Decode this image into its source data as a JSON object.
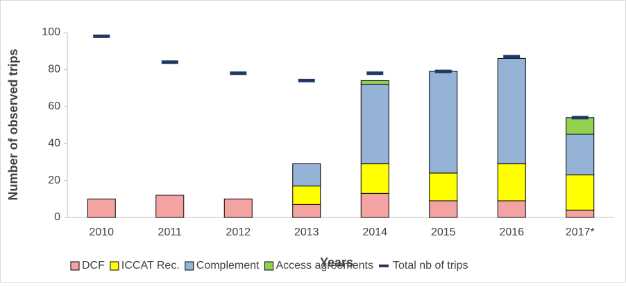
{
  "chart_data": {
    "type": "stacked_bar",
    "x_label": "Years",
    "y_label": "Number of observed trips",
    "categories": [
      "2010",
      "2011",
      "2012",
      "2013",
      "2014",
      "2015",
      "2016",
      "2017*"
    ],
    "series": [
      {
        "name": "DCF",
        "color": "#f4a3a3",
        "values": [
          10,
          12,
          10,
          7,
          13,
          9,
          9,
          4
        ]
      },
      {
        "name": "ICCAT Rec.",
        "color": "#ffff00",
        "values": [
          0,
          0,
          0,
          10,
          16,
          15,
          20,
          19
        ]
      },
      {
        "name": "Complement",
        "color": "#95b3d7",
        "values": [
          0,
          0,
          0,
          12,
          43,
          55,
          57,
          22
        ]
      },
      {
        "name": "Access agreements",
        "color": "#92d050",
        "values": [
          0,
          0,
          0,
          0,
          2,
          0,
          0,
          9
        ]
      }
    ],
    "total": {
      "name": "Total nb of trips",
      "color": "#1f3864",
      "values": [
        98,
        84,
        78,
        74,
        78,
        79,
        87,
        54
      ]
    },
    "ylim": [
      0,
      100
    ],
    "yticks": [
      0,
      20,
      40,
      60,
      80,
      100
    ]
  }
}
